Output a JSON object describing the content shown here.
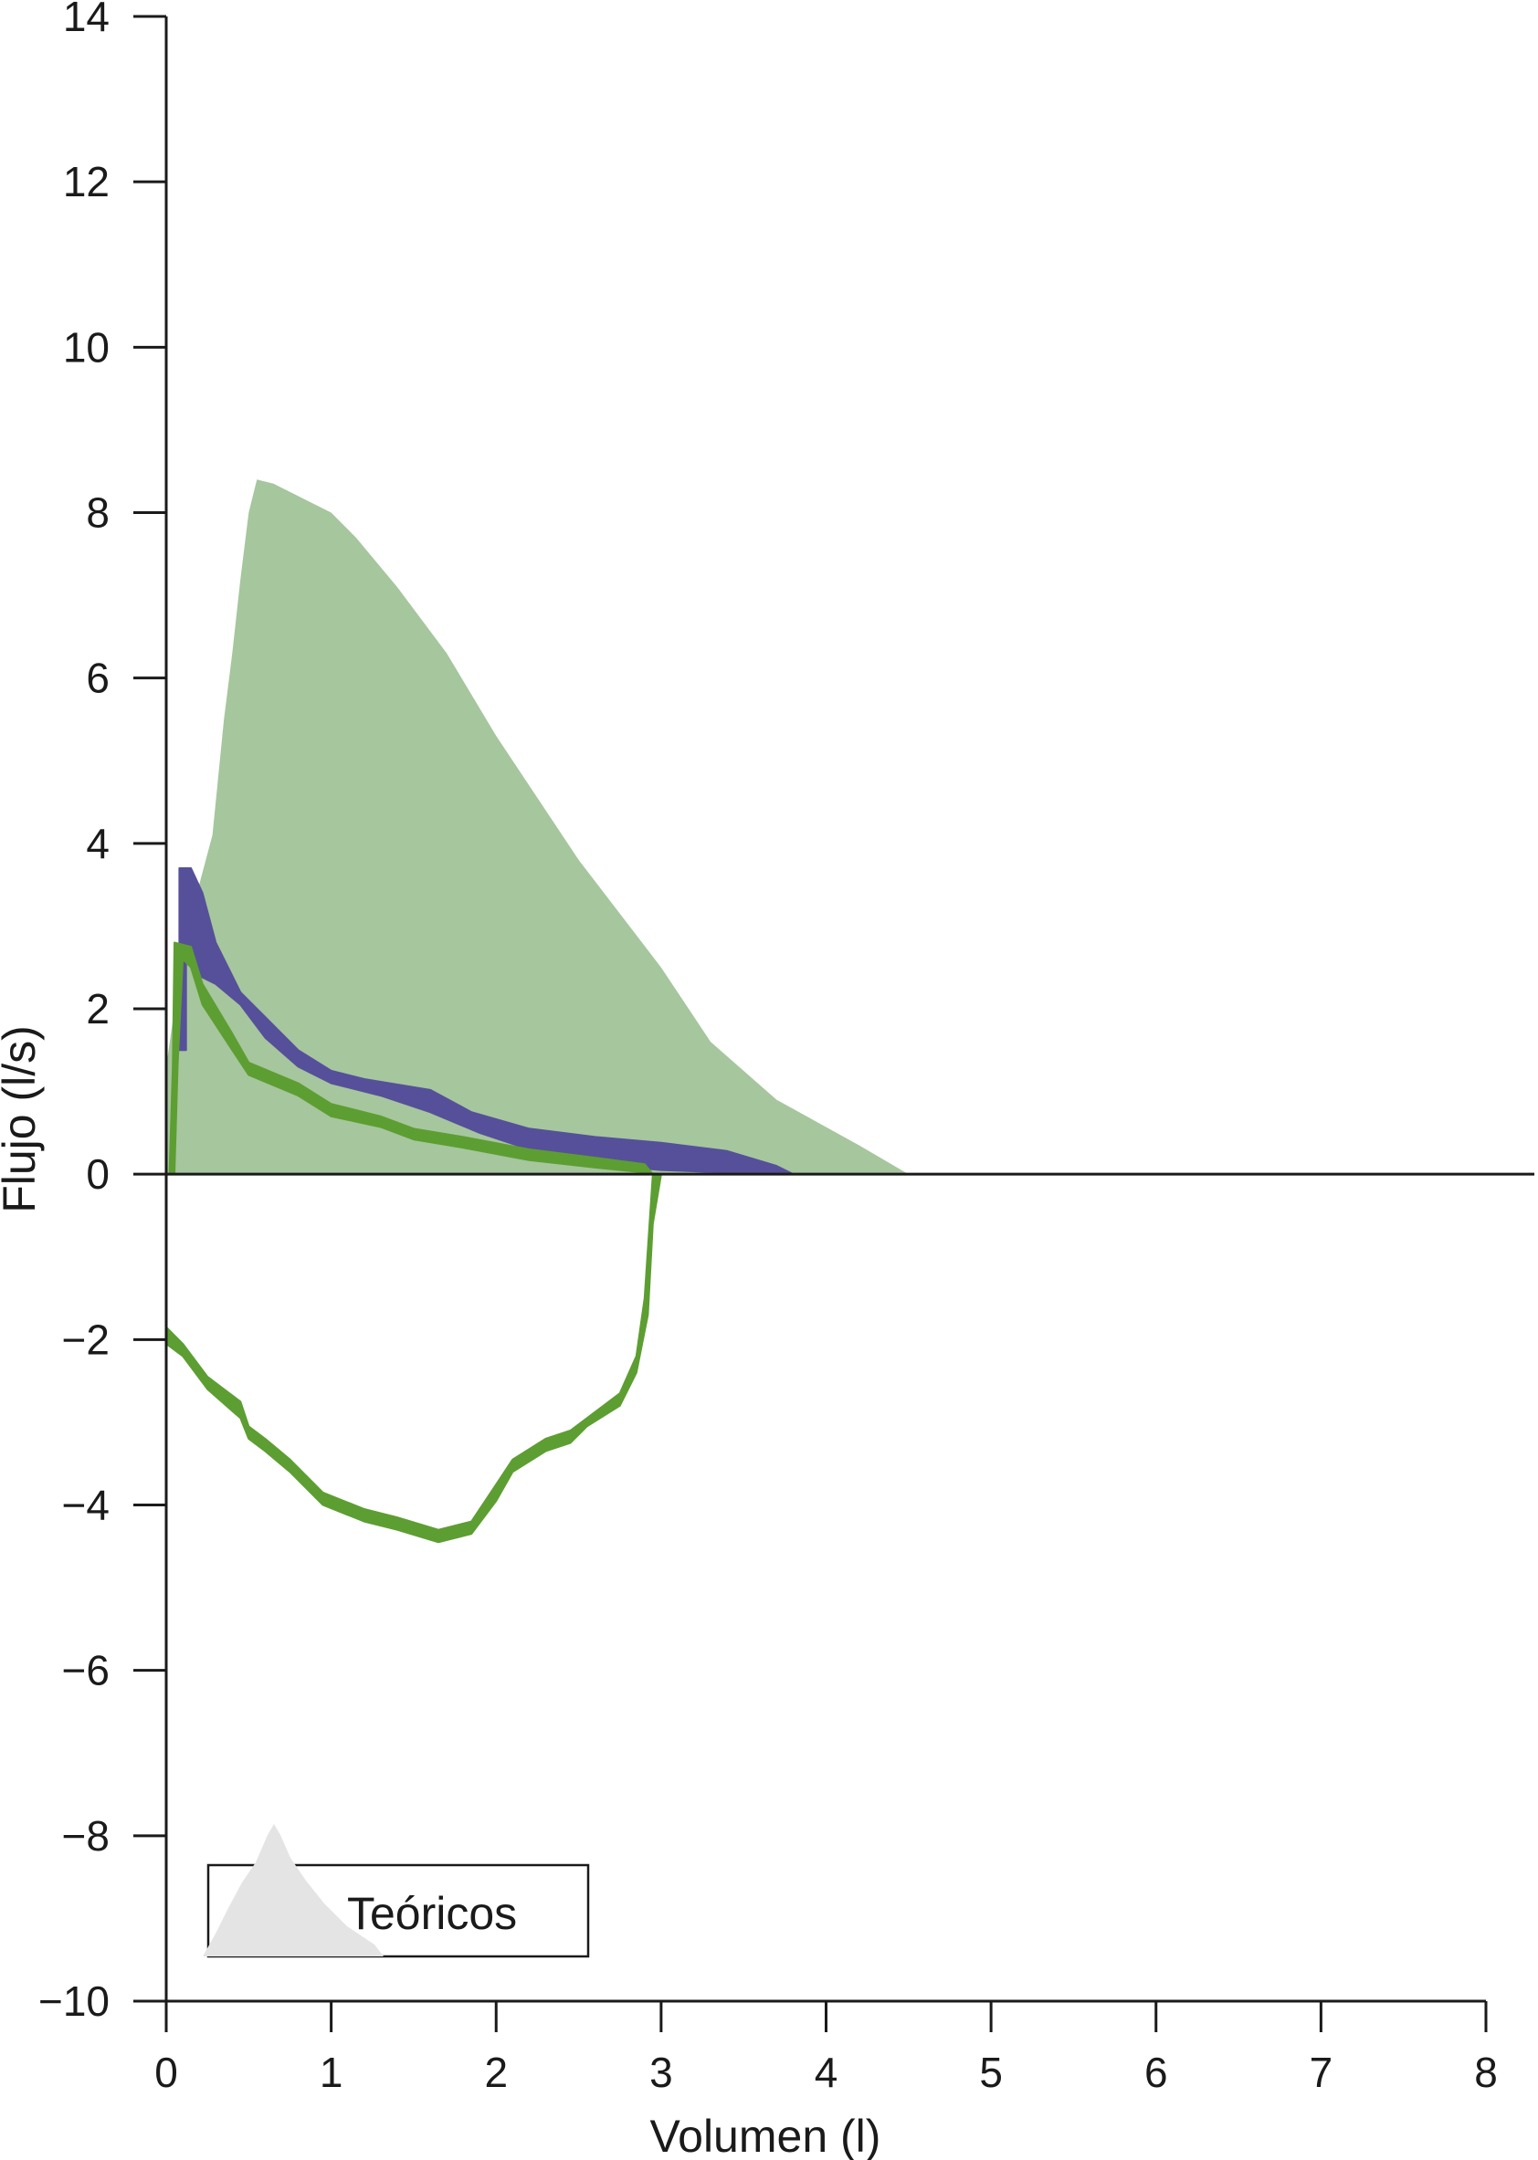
{
  "chart_data": {
    "type": "area",
    "title": "",
    "xlabel": "Volumen (l)",
    "ylabel": "Flujo (l/s)",
    "xlim": [
      0,
      8
    ],
    "ylim": [
      -10,
      14
    ],
    "x_ticks": [
      "0",
      "1",
      "2",
      "3",
      "4",
      "5",
      "6",
      "7",
      "8"
    ],
    "y_ticks": [
      "14",
      "12",
      "10",
      "8",
      "6",
      "4",
      "2",
      "0",
      "−2",
      "−4",
      "−6",
      "−8",
      "−10"
    ],
    "legend": {
      "label": "Teóricos",
      "placement": "bottom-left"
    },
    "grid": false,
    "colors": {
      "predicted_fill": "#a6c69d",
      "series_purple": "#56509a",
      "series_green": "#5d9e32",
      "legend_swatch": "#e4e4e4",
      "axis": "#1a1a1a"
    },
    "series": [
      {
        "name": "Teóricos",
        "kind": "filled-area",
        "points": [
          [
            0.0,
            0.0
          ],
          [
            0.0,
            1.3
          ],
          [
            0.1,
            2.7
          ],
          [
            0.2,
            3.5
          ],
          [
            0.28,
            4.1
          ],
          [
            0.35,
            5.5
          ],
          [
            0.4,
            6.3
          ],
          [
            0.45,
            7.2
          ],
          [
            0.5,
            8.0
          ],
          [
            0.55,
            8.4
          ],
          [
            0.65,
            8.35
          ],
          [
            0.8,
            8.2
          ],
          [
            1.0,
            8.0
          ],
          [
            1.15,
            7.7
          ],
          [
            1.4,
            7.1
          ],
          [
            1.7,
            6.3
          ],
          [
            2.0,
            5.3
          ],
          [
            2.2,
            4.7
          ],
          [
            2.5,
            3.8
          ],
          [
            3.0,
            2.5
          ],
          [
            3.3,
            1.6
          ],
          [
            3.7,
            0.9
          ],
          [
            4.2,
            0.35
          ],
          [
            4.5,
            0.0
          ]
        ]
      },
      {
        "name": "",
        "kind": "curve-band",
        "upper": [
          [
            0.08,
            3.7
          ],
          [
            0.15,
            3.7
          ],
          [
            0.22,
            3.4
          ],
          [
            0.3,
            2.8
          ],
          [
            0.45,
            2.2
          ],
          [
            0.6,
            1.9
          ],
          [
            0.8,
            1.5
          ],
          [
            1.0,
            1.25
          ],
          [
            1.2,
            1.15
          ],
          [
            1.6,
            1.02
          ],
          [
            1.85,
            0.75
          ],
          [
            2.2,
            0.55
          ],
          [
            2.6,
            0.45
          ],
          [
            3.0,
            0.38
          ],
          [
            3.4,
            0.28
          ],
          [
            3.7,
            0.1
          ],
          [
            3.8,
            0.0
          ]
        ],
        "lower": [
          [
            3.8,
            0.0
          ],
          [
            3.4,
            0.02
          ],
          [
            3.0,
            0.05
          ],
          [
            2.6,
            0.12
          ],
          [
            2.2,
            0.3
          ],
          [
            1.9,
            0.5
          ],
          [
            1.6,
            0.75
          ],
          [
            1.3,
            0.95
          ],
          [
            1.0,
            1.1
          ],
          [
            0.8,
            1.3
          ],
          [
            0.6,
            1.65
          ],
          [
            0.45,
            2.05
          ],
          [
            0.3,
            2.3
          ],
          [
            0.2,
            2.4
          ],
          [
            0.12,
            2.6
          ],
          [
            0.12,
            1.5
          ],
          [
            0.08,
            1.5
          ]
        ]
      },
      {
        "name": "",
        "kind": "curve-band",
        "upper": [
          [
            0.02,
            0.0
          ],
          [
            0.04,
            1.3
          ],
          [
            0.05,
            2.8
          ],
          [
            0.15,
            2.75
          ],
          [
            0.22,
            2.3
          ],
          [
            0.4,
            1.7
          ],
          [
            0.5,
            1.35
          ],
          [
            0.8,
            1.1
          ],
          [
            1.0,
            0.85
          ],
          [
            1.3,
            0.7
          ],
          [
            1.5,
            0.55
          ],
          [
            1.8,
            0.45
          ],
          [
            2.2,
            0.3
          ],
          [
            2.6,
            0.2
          ],
          [
            2.9,
            0.12
          ],
          [
            2.95,
            0.0
          ],
          [
            2.9,
            -1.5
          ],
          [
            2.85,
            -2.2
          ],
          [
            2.75,
            -2.65
          ],
          [
            2.55,
            -2.95
          ],
          [
            2.45,
            -3.1
          ],
          [
            2.3,
            -3.2
          ],
          [
            2.1,
            -3.45
          ],
          [
            2.0,
            -3.75
          ],
          [
            1.85,
            -4.2
          ],
          [
            1.65,
            -4.3
          ],
          [
            1.4,
            -4.15
          ],
          [
            1.2,
            -4.05
          ],
          [
            0.95,
            -3.85
          ],
          [
            0.75,
            -3.45
          ],
          [
            0.6,
            -3.2
          ],
          [
            0.5,
            -3.05
          ],
          [
            0.45,
            -2.75
          ],
          [
            0.25,
            -2.45
          ],
          [
            0.1,
            -2.05
          ],
          [
            0.0,
            -1.85
          ]
        ],
        "lower": [
          [
            0.0,
            -2.05
          ],
          [
            0.1,
            -2.2
          ],
          [
            0.25,
            -2.6
          ],
          [
            0.45,
            -2.95
          ],
          [
            0.5,
            -3.2
          ],
          [
            0.6,
            -3.35
          ],
          [
            0.75,
            -3.6
          ],
          [
            0.95,
            -4.0
          ],
          [
            1.2,
            -4.2
          ],
          [
            1.4,
            -4.3
          ],
          [
            1.65,
            -4.45
          ],
          [
            1.85,
            -4.35
          ],
          [
            2.0,
            -3.95
          ],
          [
            2.1,
            -3.6
          ],
          [
            2.3,
            -3.35
          ],
          [
            2.45,
            -3.25
          ],
          [
            2.55,
            -3.05
          ],
          [
            2.75,
            -2.8
          ],
          [
            2.85,
            -2.4
          ],
          [
            2.92,
            -1.7
          ],
          [
            2.95,
            -0.6
          ],
          [
            3.0,
            0.0
          ],
          [
            2.9,
            0.02
          ],
          [
            2.6,
            0.08
          ],
          [
            2.2,
            0.17
          ],
          [
            1.8,
            0.32
          ],
          [
            1.5,
            0.42
          ],
          [
            1.3,
            0.57
          ],
          [
            1.0,
            0.7
          ],
          [
            0.8,
            0.95
          ],
          [
            0.5,
            1.2
          ],
          [
            0.4,
            1.5
          ],
          [
            0.22,
            2.05
          ],
          [
            0.15,
            2.5
          ],
          [
            0.1,
            2.6
          ],
          [
            0.07,
            1.35
          ],
          [
            0.05,
            0.0
          ]
        ]
      }
    ]
  }
}
